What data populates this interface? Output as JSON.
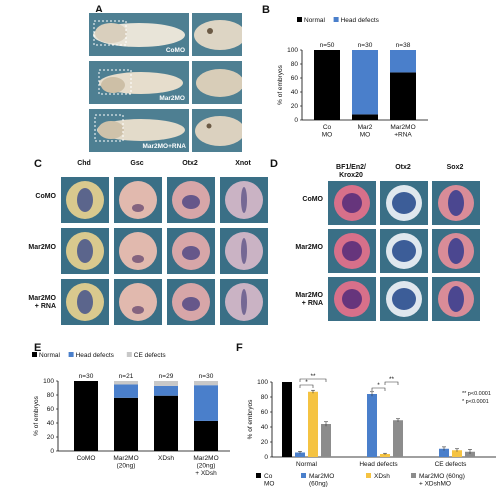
{
  "panels": {
    "A": {
      "letter": "A",
      "rows": [
        {
          "label": "CoMO"
        },
        {
          "label": "Mar2MO"
        },
        {
          "label": "Mar2MO+RNA"
        }
      ]
    },
    "B": {
      "letter": "B",
      "legend": [
        "Normal",
        "Head defects"
      ],
      "colors": {
        "normal": "#000000",
        "head": "#4a7fcb"
      },
      "ylabel": "% of embryos",
      "yticks": [
        "100",
        "80",
        "60",
        "40",
        "20",
        "0"
      ],
      "categories": [
        "Co\nMO",
        "Mar2\nMO",
        "Mar2MO\n+RNA"
      ],
      "n_labels": [
        "n=50",
        "n=30",
        "n=38"
      ]
    },
    "C": {
      "letter": "C",
      "columns": [
        "Chd",
        "Gsc",
        "Otx2",
        "Xnot"
      ],
      "rows": [
        "CoMO",
        "Mar2MO",
        "Mar2MO\n+ RNA"
      ]
    },
    "D": {
      "letter": "D",
      "columns": [
        "BF1/En2/\nKrox20",
        "Otx2",
        "Sox2"
      ],
      "rows": [
        "CoMO",
        "Mar2MO",
        "Mar2MO\n+ RNA"
      ]
    },
    "E": {
      "letter": "E",
      "legend": [
        "Normal",
        "Head defects",
        "CE defects"
      ],
      "colors": {
        "normal": "#000000",
        "head": "#4a7fcb",
        "ce": "#c8c8c8"
      },
      "ylabel": "% of embryos",
      "yticks": [
        "100",
        "80",
        "60",
        "40",
        "20",
        "0"
      ],
      "categories": [
        "CoMO",
        "Mar2MO\n(20ng)",
        "XDsh",
        "Mar2MO\n(20ng)\n+ XDsh"
      ],
      "n_labels": [
        "n=30",
        "n=21",
        "n=29",
        "n=30"
      ]
    },
    "F": {
      "letter": "F",
      "ylabel": "% of embryos",
      "yticks": [
        "100",
        "80",
        "60",
        "40",
        "20",
        "0"
      ],
      "groups": [
        "Normal",
        "Head defects",
        "CE defects"
      ],
      "legend": [
        "Co\nMO",
        "Mar2MO\n(60ng)",
        "XDsh",
        "Mar2MO (60ng)\n+ XDshMO"
      ],
      "colors": [
        "#000000",
        "#4a7fcb",
        "#f5c342",
        "#8c8c8c"
      ],
      "sig": [
        "*",
        "**",
        "*",
        "**"
      ],
      "pvals": [
        "** p<0.0001",
        "* p<0.0001"
      ]
    }
  },
  "chart_data": [
    {
      "panel": "B",
      "type": "bar",
      "stacked": true,
      "categories": [
        "Co MO",
        "Mar2 MO",
        "Mar2MO +RNA"
      ],
      "series": [
        {
          "name": "Normal",
          "values": [
            100,
            8,
            68
          ]
        },
        {
          "name": "Head defects",
          "values": [
            0,
            92,
            32
          ]
        }
      ],
      "ylabel": "% of embryos",
      "ylim": [
        0,
        100
      ],
      "legend": "top"
    },
    {
      "panel": "E",
      "type": "bar",
      "stacked": true,
      "categories": [
        "CoMO",
        "Mar2MO (20ng)",
        "XDsh",
        "Mar2MO (20ng) + XDsh"
      ],
      "series": [
        {
          "name": "Normal",
          "values": [
            100,
            76,
            79,
            43
          ]
        },
        {
          "name": "Head defects",
          "values": [
            0,
            19,
            14,
            51
          ]
        },
        {
          "name": "CE defects",
          "values": [
            0,
            5,
            7,
            6
          ]
        }
      ],
      "ylabel": "% of embryos",
      "ylim": [
        0,
        100
      ],
      "legend": "top"
    },
    {
      "panel": "F",
      "type": "bar",
      "stacked": false,
      "categories": [
        "Normal",
        "Head defects",
        "CE defects"
      ],
      "series": [
        {
          "name": "Co MO",
          "values": [
            100,
            0,
            0
          ],
          "err": [
            0,
            0,
            0
          ]
        },
        {
          "name": "Mar2MO (60ng)",
          "values": [
            6,
            84,
            11
          ],
          "err": [
            1.5,
            3,
            2.5
          ]
        },
        {
          "name": "XDsh",
          "values": [
            87,
            4,
            9
          ],
          "err": [
            2,
            1,
            2
          ]
        },
        {
          "name": "Mar2MO (60ng) + XDshMO",
          "values": [
            44,
            49,
            7
          ],
          "err": [
            3,
            2,
            3
          ]
        }
      ],
      "ylabel": "% of embryos",
      "ylim": [
        0,
        100
      ],
      "legend": "bottom"
    }
  ]
}
